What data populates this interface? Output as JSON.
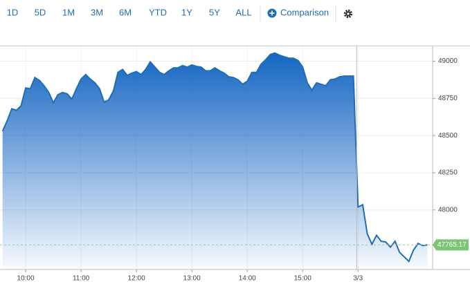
{
  "toolbar": {
    "ranges": [
      "1D",
      "5D",
      "1M",
      "3M",
      "6M",
      "YTD",
      "1Y",
      "5Y",
      "ALL"
    ],
    "comparison": "Comparison"
  },
  "chart_data": {
    "type": "area",
    "color": "#1f6db3",
    "categories": [
      null,
      null,
      null,
      null,
      null,
      "10:00",
      null,
      null,
      null,
      null,
      null,
      null,
      null,
      null,
      null,
      null,
      null,
      "11:00",
      null,
      null,
      null,
      null,
      null,
      null,
      null,
      null,
      null,
      null,
      null,
      "12:00",
      null,
      null,
      null,
      null,
      null,
      null,
      null,
      null,
      null,
      null,
      null,
      "13:00",
      null,
      null,
      null,
      null,
      null,
      null,
      null,
      null,
      null,
      null,
      null,
      "14:00",
      null,
      null,
      null,
      null,
      null,
      null,
      null,
      null,
      null,
      null,
      null,
      "15:00",
      null,
      null,
      null,
      null,
      null,
      null,
      null,
      null,
      null,
      null,
      null,
      "3/3",
      null,
      null,
      null,
      null,
      null,
      null,
      null,
      null,
      null,
      null,
      null,
      null,
      null,
      null,
      null
    ],
    "values": [
      48530,
      48600,
      48680,
      48670,
      48700,
      48820,
      48815,
      48890,
      48870,
      48835,
      48790,
      48720,
      48775,
      48790,
      48780,
      48745,
      48815,
      48880,
      48910,
      48880,
      48855,
      48815,
      48725,
      48740,
      48800,
      48925,
      48945,
      48905,
      48920,
      48930,
      48910,
      48945,
      48995,
      48960,
      48925,
      48910,
      48935,
      48955,
      48955,
      48970,
      48960,
      48975,
      48965,
      48960,
      48935,
      48935,
      48955,
      48935,
      48920,
      48895,
      48890,
      48875,
      48845,
      48865,
      48925,
      48925,
      48980,
      49010,
      49045,
      49055,
      49040,
      49030,
      49020,
      49020,
      49005,
      48960,
      48855,
      48805,
      48855,
      48845,
      48835,
      48875,
      48880,
      48895,
      48900,
      48900,
      48900,
      48020,
      48035,
      47840,
      47770,
      47830,
      47790,
      47785,
      47750,
      47790,
      47715,
      47685,
      47655,
      47730,
      47775,
      47760,
      47765.17
    ],
    "ylim": [
      47600,
      49100
    ],
    "yticks": [
      48000,
      48250,
      48500,
      48750,
      49000
    ],
    "grid": true,
    "last_value_color": "#7cc576"
  }
}
